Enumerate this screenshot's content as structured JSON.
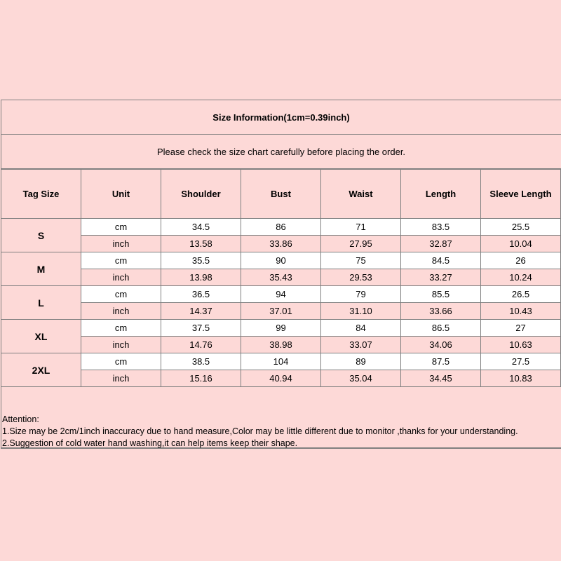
{
  "title": "Size Information(1cm=0.39inch)",
  "note": "Please check the size chart carefully before placing the order.",
  "headers": [
    "Tag Size",
    "Unit",
    "Shoulder",
    "Bust",
    "Waist",
    "Length",
    "Sleeve Length"
  ],
  "rows": [
    {
      "size": "S",
      "cm": {
        "unit": "cm",
        "values": [
          "34.5",
          "86",
          "71",
          "83.5",
          "25.5"
        ]
      },
      "inch": {
        "unit": "inch",
        "values": [
          "13.58",
          "33.86",
          "27.95",
          "32.87",
          "10.04"
        ]
      }
    },
    {
      "size": "M",
      "cm": {
        "unit": "cm",
        "values": [
          "35.5",
          "90",
          "75",
          "84.5",
          "26"
        ]
      },
      "inch": {
        "unit": "inch",
        "values": [
          "13.98",
          "35.43",
          "29.53",
          "33.27",
          "10.24"
        ]
      }
    },
    {
      "size": "L",
      "cm": {
        "unit": "cm",
        "values": [
          "36.5",
          "94",
          "79",
          "85.5",
          "26.5"
        ]
      },
      "inch": {
        "unit": "inch",
        "values": [
          "14.37",
          "37.01",
          "31.10",
          "33.66",
          "10.43"
        ]
      }
    },
    {
      "size": "XL",
      "cm": {
        "unit": "cm",
        "values": [
          "37.5",
          "99",
          "84",
          "86.5",
          "27"
        ]
      },
      "inch": {
        "unit": "inch",
        "values": [
          "14.76",
          "38.98",
          "33.07",
          "34.06",
          "10.63"
        ]
      }
    },
    {
      "size": "2XL",
      "cm": {
        "unit": "cm",
        "values": [
          "38.5",
          "104",
          "89",
          "87.5",
          "27.5"
        ]
      },
      "inch": {
        "unit": "inch",
        "values": [
          "15.16",
          "40.94",
          "35.04",
          "34.45",
          "10.83"
        ]
      }
    }
  ],
  "attention": {
    "heading": "Attention:",
    "lines": [
      "1.Size may be 2cm/1inch inaccuracy due to hand measure,Color may be little different due to monitor ,thanks for your understanding.",
      "2.Suggestion of cold water hand washing,it can help items keep their shape."
    ]
  },
  "colors": {
    "background": "#fdd9d7",
    "border": "#7f7f7f",
    "cm_row": "#ffffff"
  }
}
